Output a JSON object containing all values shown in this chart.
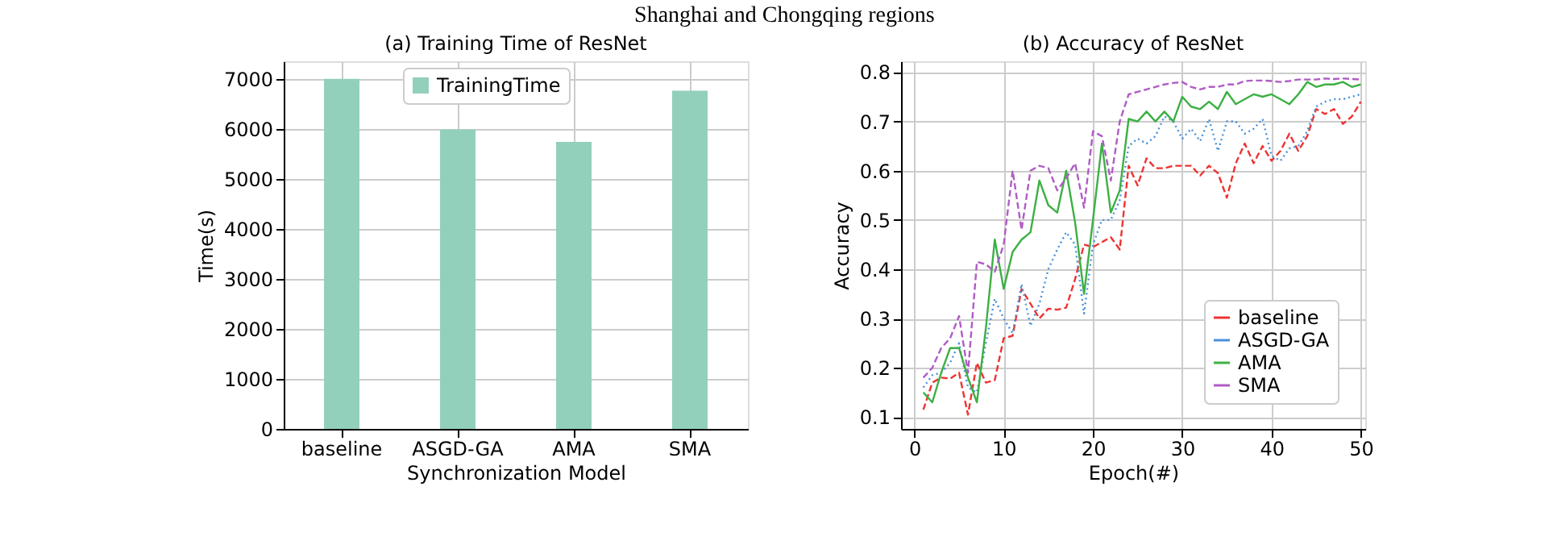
{
  "chart_data": [
    {
      "type": "bar",
      "title": "(a) Training Time of ResNet",
      "annotations": [
        "Shanghai and Chongqing regions"
      ],
      "xlabel": "Synchronization Model",
      "ylabel": "Time(s)",
      "categories": [
        "baseline",
        "ASGD-GA",
        "AMA",
        "SMA"
      ],
      "series": [
        {
          "name": "TrainingTime",
          "color": "#93d0bc",
          "values": [
            7000,
            5990,
            5740,
            6760
          ]
        }
      ],
      "ylim": [
        0,
        7350
      ],
      "yticks": [
        0,
        1000,
        2000,
        3000,
        4000,
        5000,
        6000,
        7000
      ],
      "grid": true,
      "legend": "top"
    },
    {
      "type": "line",
      "title": "(b) Accuracy of ResNet",
      "xlabel": "Epoch(#)",
      "ylabel": "Accuracy",
      "x": [
        1,
        2,
        3,
        4,
        5,
        6,
        7,
        8,
        9,
        10,
        11,
        12,
        13,
        14,
        15,
        16,
        17,
        18,
        19,
        20,
        21,
        22,
        23,
        24,
        25,
        26,
        27,
        28,
        29,
        30,
        31,
        32,
        33,
        34,
        35,
        36,
        37,
        38,
        39,
        40,
        41,
        42,
        43,
        44,
        45,
        46,
        47,
        48,
        49,
        50
      ],
      "series": [
        {
          "name": "baseline",
          "color": "#ee3333",
          "line_style": "dashed",
          "values": [
            0.115,
            0.17,
            0.18,
            0.178,
            0.19,
            0.105,
            0.21,
            0.17,
            0.175,
            0.26,
            0.265,
            0.36,
            0.33,
            0.3,
            0.32,
            0.318,
            0.322,
            0.38,
            0.45,
            0.445,
            0.455,
            0.465,
            0.44,
            0.61,
            0.57,
            0.625,
            0.605,
            0.605,
            0.61,
            0.61,
            0.61,
            0.59,
            0.61,
            0.595,
            0.545,
            0.615,
            0.655,
            0.615,
            0.65,
            0.62,
            0.64,
            0.675,
            0.64,
            0.67,
            0.725,
            0.715,
            0.725,
            0.695,
            0.71,
            0.74
          ]
        },
        {
          "name": "ASGD-GA",
          "color": "#4a90d9",
          "line_style": "dotted",
          "values": [
            0.16,
            0.185,
            0.19,
            0.21,
            0.25,
            0.16,
            0.15,
            0.25,
            0.34,
            0.3,
            0.27,
            0.37,
            0.285,
            0.33,
            0.4,
            0.44,
            0.475,
            0.45,
            0.31,
            0.45,
            0.5,
            0.5,
            0.54,
            0.65,
            0.665,
            0.655,
            0.67,
            0.71,
            0.7,
            0.665,
            0.685,
            0.66,
            0.705,
            0.64,
            0.7,
            0.7,
            0.675,
            0.685,
            0.705,
            0.63,
            0.62,
            0.645,
            0.65,
            0.68,
            0.73,
            0.74,
            0.745,
            0.745,
            0.75,
            0.755
          ]
        },
        {
          "name": "AMA",
          "color": "#3cb043",
          "line_style": "solid",
          "values": [
            0.15,
            0.13,
            0.19,
            0.24,
            0.24,
            0.18,
            0.13,
            0.28,
            0.46,
            0.36,
            0.435,
            0.46,
            0.475,
            0.58,
            0.53,
            0.515,
            0.6,
            0.495,
            0.35,
            0.5,
            0.655,
            0.515,
            0.56,
            0.705,
            0.7,
            0.72,
            0.7,
            0.72,
            0.7,
            0.75,
            0.73,
            0.725,
            0.74,
            0.725,
            0.76,
            0.735,
            0.745,
            0.755,
            0.75,
            0.755,
            0.745,
            0.735,
            0.755,
            0.78,
            0.77,
            0.775,
            0.775,
            0.78,
            0.77,
            0.775
          ]
        },
        {
          "name": "SMA",
          "color": "#b05cc6",
          "line_style": "dashed",
          "values": [
            0.18,
            0.2,
            0.24,
            0.26,
            0.305,
            0.19,
            0.415,
            0.41,
            0.395,
            0.45,
            0.6,
            0.48,
            0.6,
            0.61,
            0.605,
            0.56,
            0.585,
            0.615,
            0.525,
            0.68,
            0.67,
            0.58,
            0.7,
            0.755,
            0.76,
            0.765,
            0.77,
            0.775,
            0.778,
            0.78,
            0.77,
            0.765,
            0.77,
            0.77,
            0.775,
            0.775,
            0.782,
            0.783,
            0.783,
            0.782,
            0.78,
            0.782,
            0.785,
            0.785,
            0.785,
            0.787,
            0.786,
            0.787,
            0.786,
            0.785
          ]
        }
      ],
      "xlim": [
        -1.5,
        50.5
      ],
      "xticks": [
        0,
        10,
        20,
        30,
        40,
        50
      ],
      "ylim": [
        0.076,
        0.822
      ],
      "yticks": [
        0.1,
        0.2,
        0.3,
        0.4,
        0.5,
        0.6,
        0.7,
        0.8
      ],
      "grid": true,
      "legend": "bottom right"
    }
  ]
}
